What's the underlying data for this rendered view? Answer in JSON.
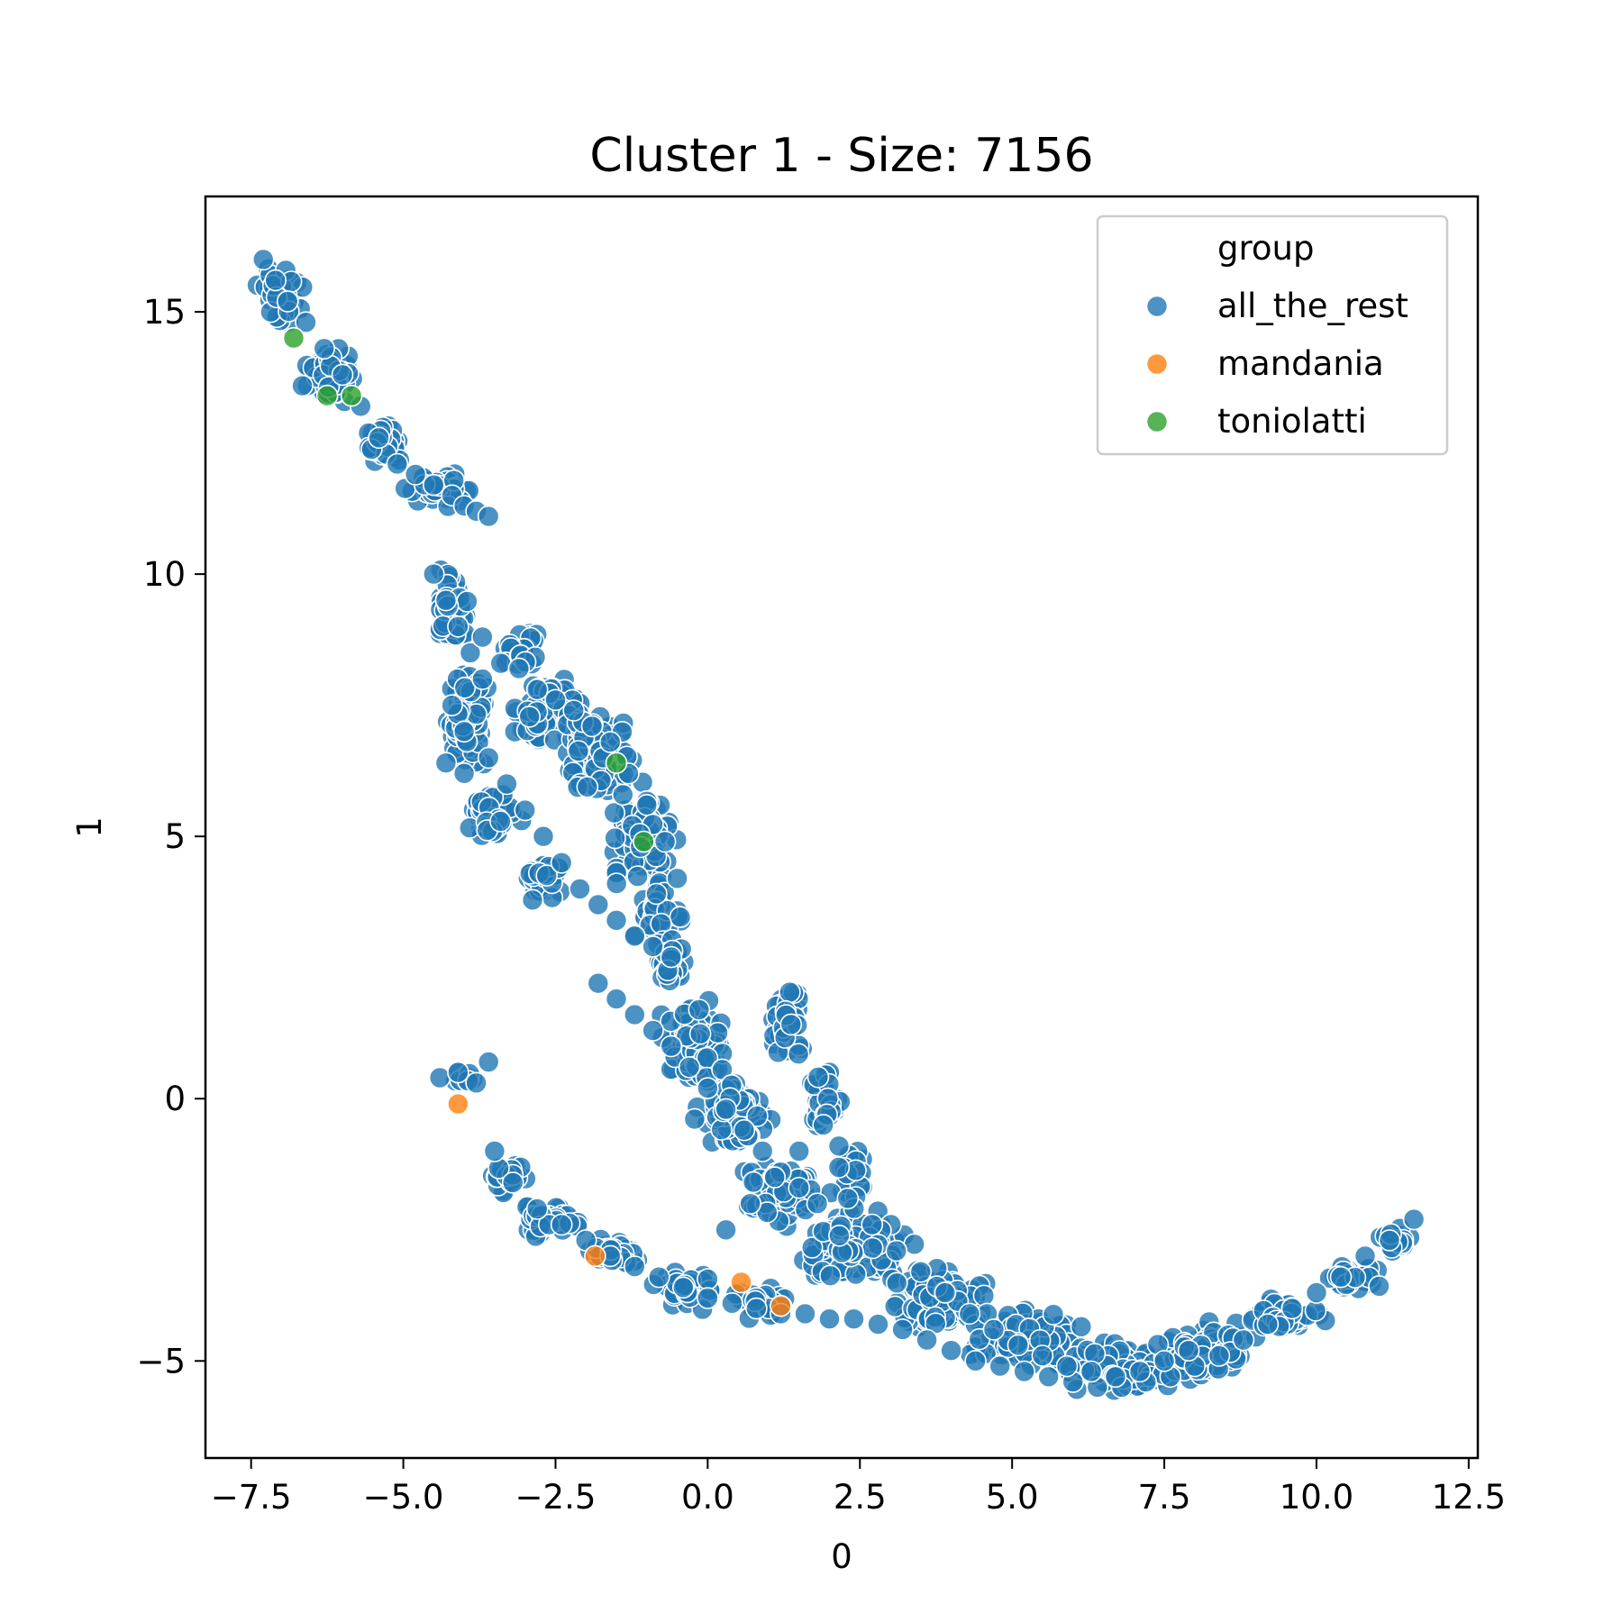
{
  "chart_data": {
    "type": "scatter",
    "title": "Cluster 1 - Size: 7156",
    "xlabel": "0",
    "ylabel": "1",
    "xlim": [
      -8.25,
      12.65
    ],
    "ylim": [
      -6.85,
      17.2
    ],
    "xticks": [
      -7.5,
      -5.0,
      -2.5,
      0.0,
      2.5,
      5.0,
      7.5,
      10.0,
      12.5
    ],
    "xtick_labels": [
      "−7.5",
      "−5.0",
      "−2.5",
      "0.0",
      "2.5",
      "5.0",
      "7.5",
      "10.0",
      "12.5"
    ],
    "yticks": [
      -5,
      0,
      5,
      10,
      15
    ],
    "ytick_labels": [
      "−5",
      "0",
      "5",
      "10",
      "15"
    ],
    "grid": false,
    "legend": {
      "title": "group",
      "placement": "upper right",
      "entries": [
        "all_the_rest",
        "mandania",
        "toniolatti"
      ]
    },
    "colors": {
      "all_the_rest": "#1f77b4",
      "mandania": "#ff7f0e",
      "toniolatti": "#2ca02c"
    },
    "series": [
      {
        "name": "all_the_rest",
        "shape_description": "dense cloud of 7156 points forming a curved band from upper-left to lower-right",
        "x": [
          -7.3,
          -7.1,
          -6.9,
          -6.6,
          -6.3,
          -6.0,
          -5.7,
          -5.4,
          -5.1,
          -4.8,
          -4.5,
          -4.2,
          -4.0,
          -3.8,
          -3.6,
          -4.5,
          -4.3,
          -4.1,
          -3.9,
          -3.7,
          -4.2,
          -4.0,
          -3.6,
          -3.3,
          -3.0,
          -2.7,
          -2.4,
          -2.1,
          -1.8,
          -1.5,
          -1.2,
          -0.9,
          -0.6,
          -4.3,
          -4.0,
          -3.7,
          -3.4,
          -3.1,
          -2.8,
          -2.5,
          -2.2,
          -1.9,
          -1.6,
          -1.3,
          -1.0,
          -0.7,
          -0.5,
          -1.8,
          -1.5,
          -1.2,
          -0.9,
          -0.6,
          -0.3,
          0.0,
          0.3,
          0.6,
          0.9,
          1.2,
          1.5,
          1.8,
          -4.4,
          -4.1,
          -3.8,
          -3.6,
          -3.5,
          -3.2,
          -2.8,
          -2.4,
          -2.0,
          -1.6,
          -1.2,
          -0.8,
          -0.4,
          0.0,
          0.4,
          0.8,
          1.2,
          1.6,
          2.0,
          2.4,
          2.8,
          3.2,
          3.6,
          4.0,
          4.4,
          4.8,
          5.2,
          5.6,
          6.0,
          6.4,
          6.8,
          7.2,
          7.6,
          8.0,
          8.4,
          8.8,
          9.2,
          9.6,
          10.0,
          10.4,
          10.8,
          11.2,
          11.6,
          0.3,
          0.7,
          1.1,
          1.5,
          1.9,
          2.3,
          2.7,
          3.1,
          3.5,
          3.9,
          4.3,
          4.7,
          5.1,
          5.5,
          5.9,
          6.3,
          6.7,
          7.1,
          7.5,
          7.9
        ],
        "y": [
          16.0,
          15.6,
          15.2,
          14.8,
          14.3,
          13.8,
          13.2,
          12.6,
          12.1,
          11.9,
          11.7,
          11.5,
          11.3,
          11.2,
          11.1,
          10.0,
          9.5,
          9.0,
          8.5,
          8.0,
          7.5,
          7.0,
          6.5,
          6.0,
          5.5,
          5.0,
          4.5,
          4.0,
          3.7,
          3.4,
          3.1,
          2.9,
          2.7,
          6.4,
          6.2,
          8.8,
          8.3,
          8.2,
          7.8,
          7.6,
          7.4,
          7.1,
          6.8,
          6.2,
          5.6,
          4.9,
          4.2,
          2.2,
          1.9,
          1.6,
          1.3,
          1.0,
          0.6,
          0.2,
          -0.2,
          -0.6,
          -1.0,
          -1.4,
          -1.7,
          -2.0,
          0.4,
          0.5,
          0.3,
          0.7,
          -1.0,
          -1.6,
          -2.1,
          -2.4,
          -2.7,
          -3.0,
          -3.2,
          -3.4,
          -3.6,
          -3.8,
          -3.9,
          -4.0,
          -4.1,
          -4.1,
          -4.2,
          -4.2,
          -4.3,
          -4.4,
          -4.6,
          -4.8,
          -5.0,
          -5.1,
          -5.2,
          -5.3,
          -5.4,
          -5.5,
          -5.5,
          -5.4,
          -5.3,
          -5.1,
          -4.9,
          -4.6,
          -4.3,
          -4.0,
          -3.7,
          -3.4,
          -3.0,
          -2.7,
          -2.3,
          -2.5,
          -2.0,
          -1.5,
          -1.0,
          -0.5,
          -1.9,
          -2.4,
          -2.9,
          -3.3,
          -3.7,
          -4.1,
          -4.4,
          -4.7,
          -4.9,
          -5.1,
          -5.2,
          -5.3,
          -5.2,
          -5.0,
          -4.8
        ]
      },
      {
        "name": "mandania",
        "x": [
          -4.1,
          -1.85,
          0.55,
          1.2
        ],
        "y": [
          -0.1,
          -3.0,
          -3.5,
          -3.95
        ]
      },
      {
        "name": "toniolatti",
        "x": [
          -6.8,
          -6.25,
          -5.85,
          -1.5,
          -1.05
        ],
        "y": [
          14.5,
          13.4,
          13.4,
          6.4,
          4.9
        ]
      }
    ]
  }
}
